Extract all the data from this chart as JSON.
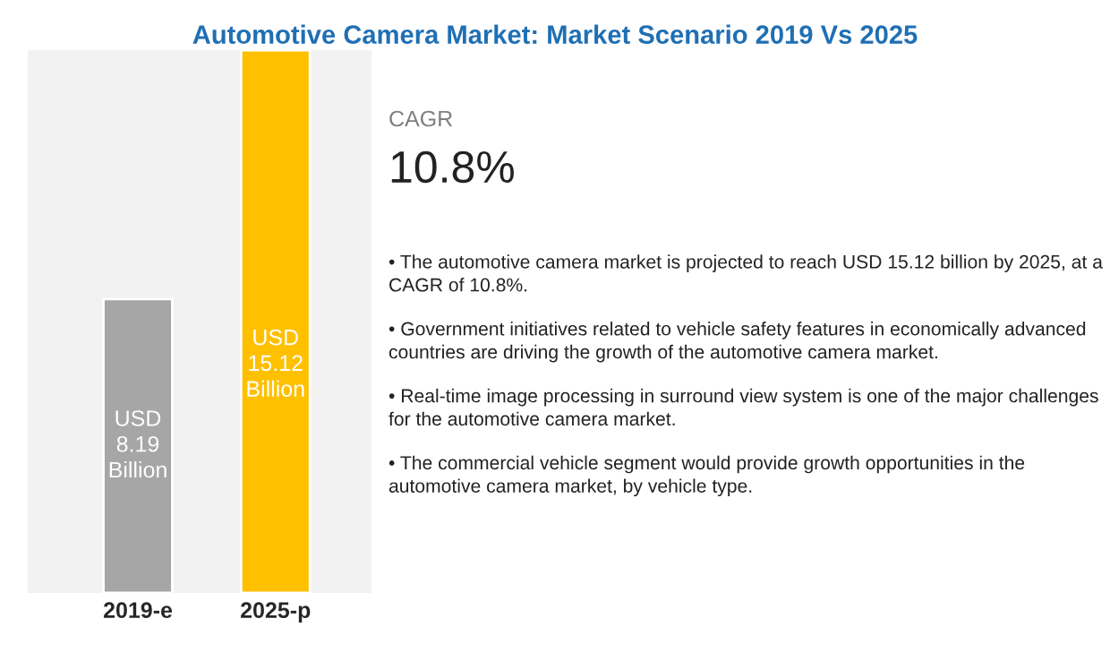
{
  "chart_data": {
    "type": "bar",
    "title": "Automotive Camera Market: Market Scenario 2019 Vs 2025",
    "categories": [
      "2019-e",
      "2025-p"
    ],
    "values": [
      8.19,
      15.12
    ],
    "colors": [
      "#a6a6a6",
      "#ffc000"
    ],
    "value_labels": [
      "USD\n8.19\nBillion",
      "USD\n15.12\nBillion"
    ],
    "annotations": [
      "CAGR",
      "10.8%",
      "• The automotive camera market is projected to reach USD 15.12 billion by 2025, at a CAGR of 10.8%.",
      "• Government initiatives related to vehicle safety features in economically advanced countries are driving the growth of the automotive camera market.",
      "• Real-time image processing in surround view system is one of the major challenges for the automotive camera market.",
      "• The commercial vehicle segment would provide growth opportunities in the automotive camera market, by vehicle type."
    ]
  }
}
